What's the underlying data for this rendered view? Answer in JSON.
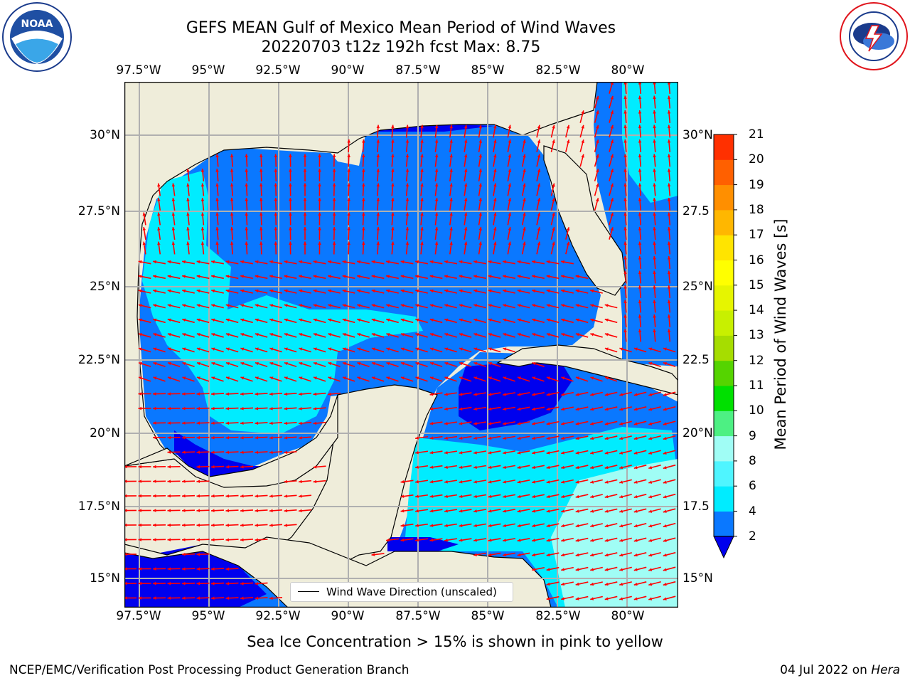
{
  "header": {
    "title_line1": "GEFS MEAN Gulf of Mexico Mean Period of Wind Waves",
    "title_line2": "20220703 t12z 192h fcst   Max: 8.75"
  },
  "logos": {
    "left": {
      "name": "NOAA",
      "ring_text": "NATIONAL OCEANIC AND ATMOSPHERIC ADMINISTRATION · U.S. DEPARTMENT OF COMMERCE"
    },
    "right": {
      "name": "NATIONAL WEATHER SERVICE"
    }
  },
  "map": {
    "lon_labels": [
      "97.5°W",
      "95°W",
      "92.5°W",
      "90°W",
      "87.5°W",
      "85°W",
      "82.5°W",
      "80°W"
    ],
    "lat_labels_left": [
      "30°N",
      "27.5°N",
      "25°N",
      "22.5°N",
      "20°N",
      "17.5°N",
      "15°N"
    ],
    "lat_labels_right": [
      "30°N",
      "27.5",
      "25°N",
      "22.5",
      "20°N",
      "17.5",
      "15°N"
    ],
    "legend_label": "Wind Wave Direction (unscaled)",
    "land_color": "#efedda",
    "arrow_color": "#ff0000",
    "grid_color": "#b0b0b0"
  },
  "colorbar": {
    "title": "Mean Period of Wind Waves [s]",
    "ticks": [
      "2",
      "4",
      "6",
      "8",
      "9",
      "10",
      "11",
      "12",
      "13",
      "14",
      "15",
      "16",
      "17",
      "18",
      "19",
      "20",
      "21"
    ],
    "colors": [
      "#0a78ff",
      "#00ecff",
      "#4ff5ff",
      "#a0fdf5",
      "#4df083",
      "#00e000",
      "#55d400",
      "#a6dd00",
      "#c8f000",
      "#e6f500",
      "#ffff00",
      "#ffe400",
      "#ffb700",
      "#ff8f00",
      "#ff6000",
      "#ff3000",
      "#ff0000"
    ],
    "extend_color": "#0000ee"
  },
  "footer": {
    "note": "Sea Ice Concentration > 15% is shown in pink to yellow",
    "left": "NCEP/EMC/Verification Post Processing Product Generation Branch",
    "right_date": "04 Jul 2022 on ",
    "right_machine": "Hera"
  }
}
